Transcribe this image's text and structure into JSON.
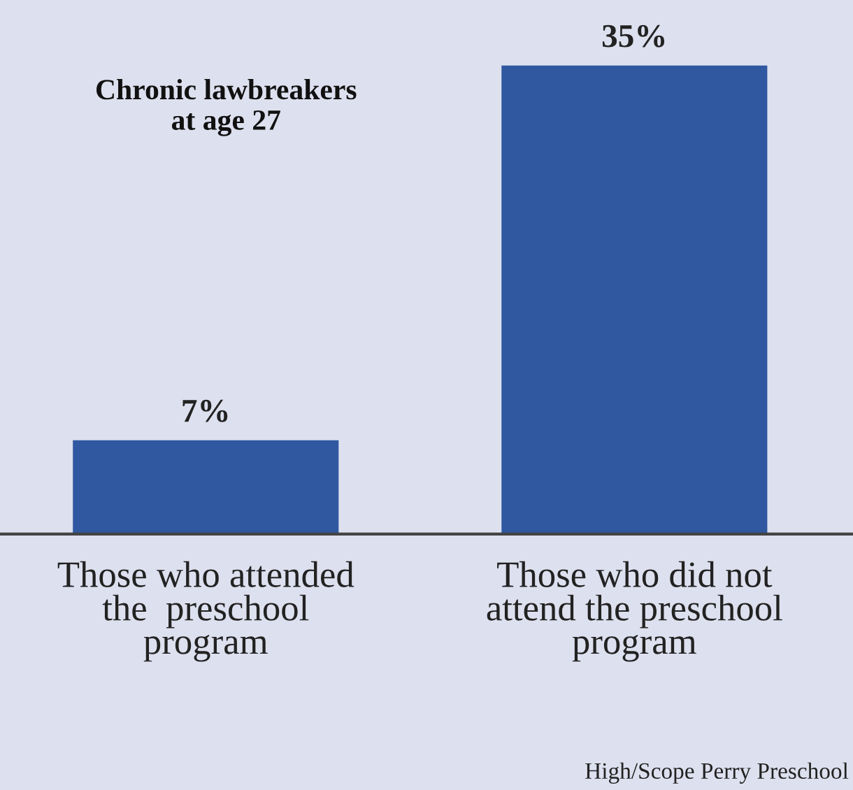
{
  "chart_data": {
    "type": "bar",
    "title": "Chronic lawbreakers\nat age 27",
    "categories": [
      "Those who attended\nthe  preschool\nprogram",
      "Those who did not\nattend the preschool\nprogram"
    ],
    "values": [
      7,
      35
    ],
    "color": "#2f58a0",
    "value_labels": [
      "7%",
      "35%"
    ],
    "grid": false,
    "legend": false,
    "tick_labels": "x",
    "annotations": [
      "High/Scope Perry Preschool"
    ]
  }
}
